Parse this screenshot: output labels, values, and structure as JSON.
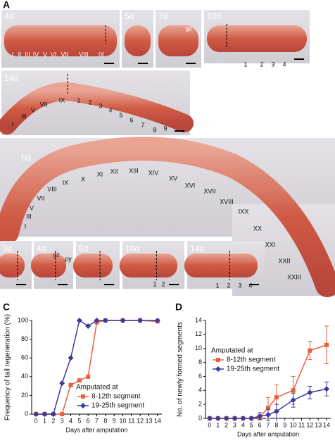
{
  "panel_a": {
    "letter": "A",
    "images": [
      {
        "day": "4d",
        "labels": [
          "I",
          "II",
          "III",
          "IV",
          "V",
          "VI",
          "VII",
          "VIII",
          "IX"
        ]
      },
      {
        "day": "5d"
      },
      {
        "day": "7d",
        "labels": [
          "gz",
          "py"
        ]
      },
      {
        "day": "10d",
        "labels": [
          "1",
          "2",
          "3",
          "4"
        ]
      },
      {
        "day": "14d",
        "labels": [
          "I",
          "III",
          "V",
          "VII",
          "IX",
          "1",
          "2",
          "3",
          "4",
          "5",
          "6",
          "7",
          "8",
          "9"
        ]
      }
    ]
  },
  "panel_b": {
    "letter": "B",
    "images": [
      {
        "day": "0d",
        "labels": [
          "I",
          "III",
          "V",
          "VII",
          "VIII",
          "IX",
          "X",
          "XI",
          "XII",
          "XIII",
          "XIV",
          "XV",
          "XVI",
          "XVII",
          "XVIII",
          "IXX",
          "XX",
          "XXI",
          "XXII",
          "XXIII"
        ]
      },
      {
        "day": "3d"
      },
      {
        "day": "4d",
        "labels": [
          "gz",
          "py"
        ]
      },
      {
        "day": "5d"
      },
      {
        "day": "10d",
        "labels": [
          "1",
          "2"
        ]
      },
      {
        "day": "14d",
        "labels": [
          "1",
          "2",
          "3",
          "4"
        ]
      }
    ]
  },
  "chart_data": [
    {
      "type": "line",
      "panel_label": "C",
      "x_label": "Days after amputation",
      "y_label": "Frequency of tail regeneration (%)",
      "xlim": [
        -0.5,
        14.5
      ],
      "xticks": [
        0,
        1,
        2,
        3,
        4,
        5,
        6,
        7,
        8,
        9,
        10,
        11,
        12,
        13,
        14
      ],
      "ylim": [
        0,
        100
      ],
      "yticks": [
        0,
        20,
        40,
        60,
        80,
        100
      ],
      "legend_title": "Amputated at",
      "legend": "right",
      "x": [
        0,
        1,
        2,
        3,
        4,
        5,
        6,
        7,
        8,
        10,
        12,
        14
      ],
      "series": [
        {
          "name": "8-12th segment",
          "color": "#e8603c",
          "marker": "square",
          "values": [
            0,
            0,
            0,
            0,
            31,
            36,
            40,
            98,
            100,
            100,
            100,
            99
          ]
        },
        {
          "name": "19-25th segment",
          "color": "#3b3b9c",
          "marker": "diamond",
          "values": [
            0,
            0,
            0,
            33,
            60,
            100,
            94,
            100,
            100,
            100,
            100,
            100
          ]
        }
      ]
    },
    {
      "type": "line",
      "panel_label": "D",
      "x_label": "Days after amputation",
      "y_label": "No. of newly formed segments",
      "xlim": [
        -0.5,
        14.5
      ],
      "xticks": [
        0,
        1,
        2,
        3,
        4,
        5,
        6,
        7,
        8,
        9,
        10,
        11,
        12,
        13,
        14
      ],
      "ylim": [
        0,
        14
      ],
      "yticks": [
        0,
        2,
        4,
        6,
        8,
        10,
        12,
        14
      ],
      "legend_title": "Amputated at",
      "legend": "left",
      "x": [
        0,
        1,
        2,
        3,
        4,
        5,
        6,
        7,
        8,
        10,
        12,
        14
      ],
      "series": [
        {
          "name": "8-12th segment",
          "color": "#e8603c",
          "marker": "square",
          "values": [
            0,
            0,
            0,
            0,
            0,
            0,
            0.2,
            1.5,
            3,
            4,
            9.7,
            10.5
          ],
          "errors": [
            0,
            0,
            0,
            0,
            0,
            0,
            0.3,
            1.5,
            1.8,
            2,
            1.3,
            2.7
          ]
        },
        {
          "name": "19-25th segment",
          "color": "#3b3b9c",
          "marker": "diamond",
          "values": [
            0,
            0,
            0,
            0,
            0,
            0,
            0.3,
            0.5,
            1,
            2.6,
            3.7,
            4.2
          ],
          "errors": [
            0,
            0,
            0,
            0,
            0,
            0,
            0.5,
            0.8,
            1,
            1,
            0.9,
            1
          ]
        }
      ]
    }
  ]
}
